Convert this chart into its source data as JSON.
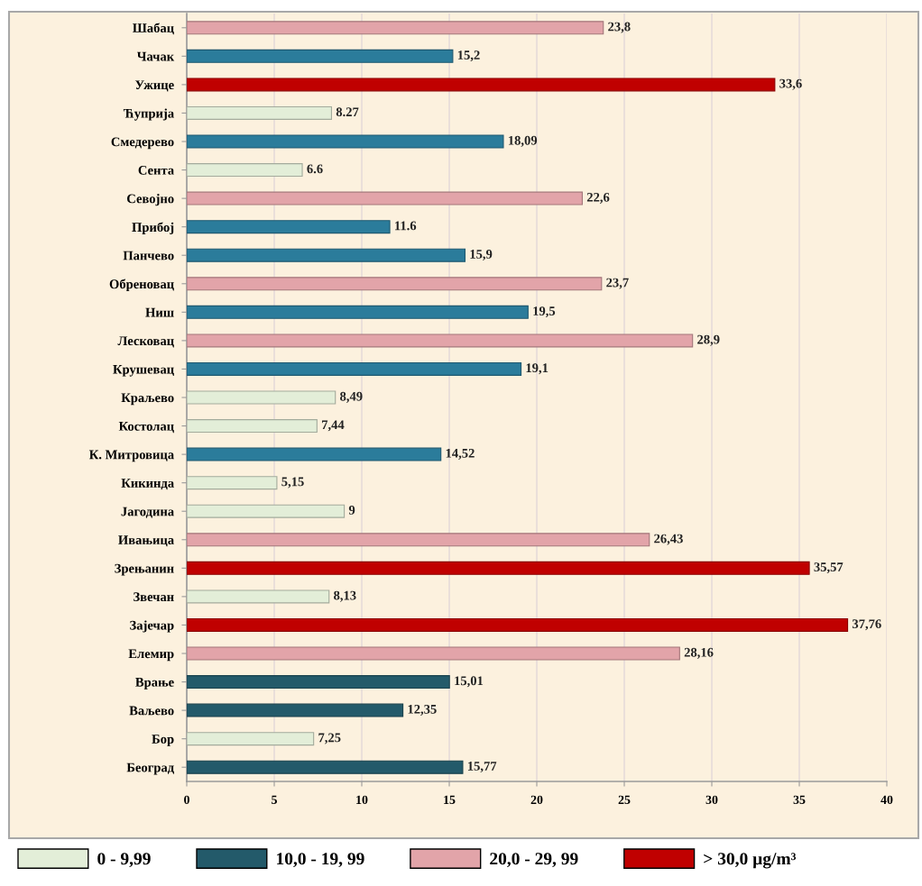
{
  "chart_data": {
    "type": "bar",
    "orientation": "horizontal",
    "stacked": true,
    "categories": [
      "Шабац",
      "Чачак",
      "Ужице",
      "Ћуприја",
      "Смедерево",
      "Сента",
      "Севојно",
      "Прибој",
      "Панчево",
      "Обреновац",
      "Ниш",
      "Лесковац",
      "Крушевац",
      "Краљево",
      "Костолац",
      "К. Митровица",
      "Кикинда",
      "Јагодина",
      "Ивањица",
      "Зрењанин",
      "Звечан",
      "Зајечар",
      "Елемир",
      "Врање",
      "Ваљево",
      "Бор",
      "Београд"
    ],
    "series": [
      {
        "name": "0 - 9,99",
        "color": "#e3eed8",
        "values": [
          null,
          null,
          null,
          8.27,
          null,
          6.6,
          null,
          null,
          null,
          null,
          null,
          null,
          null,
          8.49,
          7.44,
          null,
          5.15,
          9,
          null,
          null,
          8.13,
          null,
          null,
          null,
          null,
          7.25,
          null
        ],
        "value_labels": [
          null,
          null,
          null,
          "8.27",
          null,
          "6.6",
          null,
          null,
          null,
          null,
          null,
          null,
          null,
          "8,49",
          "7,44",
          null,
          "5,15",
          "9",
          null,
          null,
          "8,13",
          null,
          null,
          null,
          null,
          "7,25",
          null
        ]
      },
      {
        "name": "10,0 - 19, 99",
        "color": "#235a6a",
        "colors": [
          null,
          "#2b7c9b",
          null,
          null,
          "#2b7c9b",
          null,
          null,
          "#2b7c9b",
          "#2b7c9b",
          null,
          "#2b7c9b",
          null,
          "#2b7c9b",
          null,
          null,
          "#2b7c9b",
          null,
          null,
          null,
          null,
          null,
          null,
          null,
          "#235a6a",
          "#235a6a",
          null,
          "#235a6a"
        ],
        "values": [
          null,
          15.2,
          null,
          null,
          18.09,
          null,
          null,
          11.6,
          15.9,
          null,
          19.5,
          null,
          19.1,
          null,
          null,
          14.52,
          null,
          null,
          null,
          null,
          null,
          null,
          null,
          15.01,
          12.35,
          null,
          15.77
        ],
        "value_labels": [
          null,
          "15,2",
          null,
          null,
          "18,09",
          null,
          null,
          "11.6",
          "15,9",
          null,
          "19,5",
          null,
          "19,1",
          null,
          null,
          "14,52",
          null,
          null,
          null,
          null,
          null,
          null,
          null,
          "15,01",
          "12,35",
          null,
          "15,77"
        ]
      },
      {
        "name": "20,0 - 29, 99",
        "color": "#e2a4a9",
        "values": [
          23.8,
          null,
          null,
          null,
          null,
          null,
          22.6,
          null,
          null,
          23.7,
          null,
          28.9,
          null,
          null,
          null,
          null,
          null,
          null,
          26.43,
          null,
          null,
          null,
          28.16,
          null,
          null,
          null,
          null
        ],
        "value_labels": [
          "23,8",
          null,
          null,
          null,
          null,
          null,
          "22,6",
          null,
          null,
          "23,7",
          null,
          "28,9",
          null,
          null,
          null,
          null,
          null,
          null,
          "26,43",
          null,
          null,
          null,
          "28,16",
          null,
          null,
          null,
          null
        ]
      },
      {
        "name": "> 30,0 µg/m³",
        "color": "#c00000",
        "values": [
          null,
          null,
          33.6,
          null,
          null,
          null,
          null,
          null,
          null,
          null,
          null,
          null,
          null,
          null,
          null,
          null,
          null,
          null,
          null,
          35.57,
          null,
          37.76,
          null,
          null,
          null,
          null,
          null
        ],
        "value_labels": [
          null,
          null,
          "33,6",
          null,
          null,
          null,
          null,
          null,
          null,
          null,
          null,
          null,
          null,
          null,
          null,
          null,
          null,
          null,
          null,
          "35,57",
          null,
          "37,76",
          null,
          null,
          null,
          null,
          null
        ]
      }
    ],
    "xlim": [
      0,
      40
    ],
    "xticks": [
      0,
      5,
      10,
      15,
      20,
      25,
      30,
      35,
      40
    ],
    "grid": "x",
    "legend": "bottom"
  }
}
